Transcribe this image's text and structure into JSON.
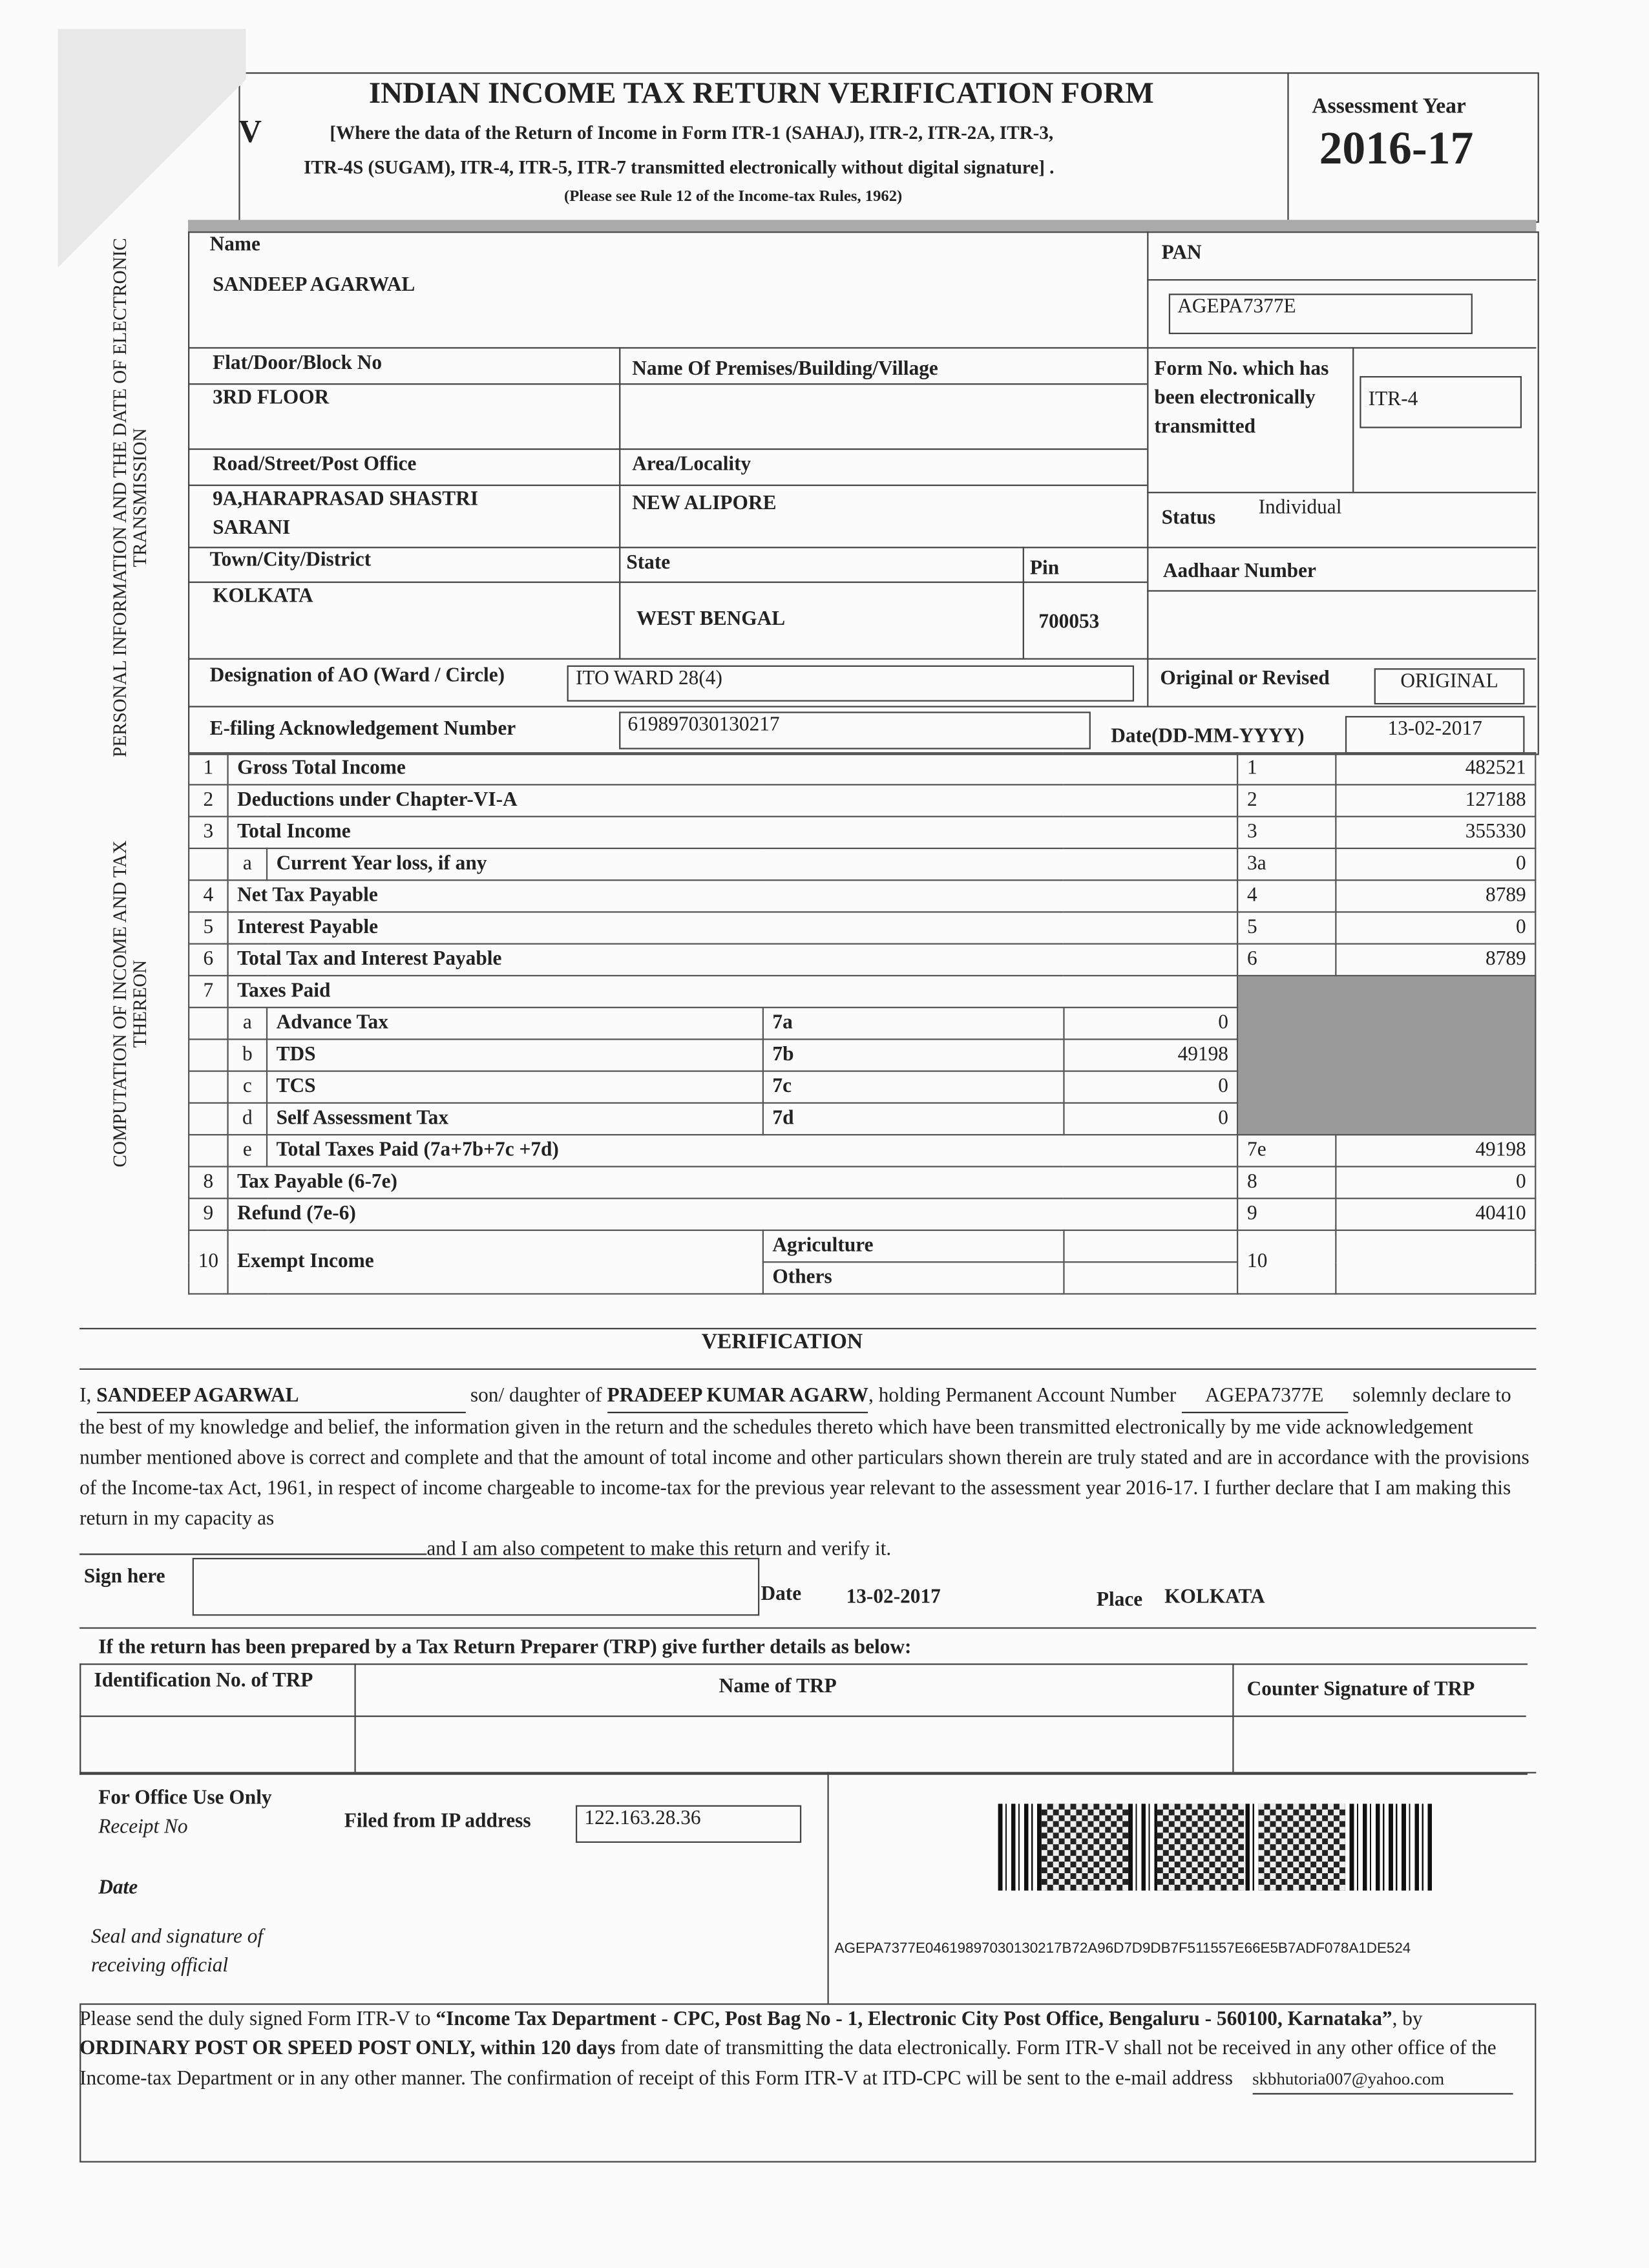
{
  "header": {
    "corner_letter": "V",
    "title": "INDIAN INCOME TAX RETURN VERIFICATION FORM",
    "subtitle_line1": "[Where the data of the Return of Income in Form ITR-1 (SAHAJ), ITR-2, ITR-2A, ITR-3,",
    "subtitle_line2": "ITR-4S (SUGAM), ITR-4, ITR-5, ITR-7  transmitted electronically without digital signature] .",
    "subtitle_line3": "(Please see Rule 12 of the Income-tax Rules, 1962)",
    "ay_label": "Assessment Year",
    "ay_value": "2016-17"
  },
  "personal": {
    "section_label": "PERSONAL INFORMATION AND THE DATE OF ELECTRONIC TRANSMISSION",
    "name_label": "Name",
    "name": "SANDEEP  AGARWAL",
    "pan_label": "PAN",
    "pan": "AGEPA7377E",
    "flat_label": "Flat/Door/Block No",
    "flat": "3RD FLOOR",
    "premises_label": "Name Of Premises/Building/Village",
    "premises": "",
    "form_no_label": "Form No. which has been electronically transmitted",
    "form_no": "ITR-4",
    "road_label": "Road/Street/Post Office",
    "road_line1": "9A,HARAPRASAD SHASTRI",
    "road_line2": "SARANI",
    "area_label": "Area/Locality",
    "area": "NEW ALIPORE",
    "status_label": "Status",
    "status": "Individual",
    "town_label": "Town/City/District",
    "town": "KOLKATA",
    "state_label": "State",
    "state": "WEST BENGAL",
    "pin_label": "Pin",
    "pin": "700053",
    "aadhaar_label": "Aadhaar Number",
    "aadhaar": "",
    "ao_label": "Designation of AO (Ward / Circle)",
    "ao": "ITO WARD 28(4)",
    "orig_label": "Original or Revised",
    "orig": "ORIGINAL",
    "ack_label": "E-filing Acknowledgement Number",
    "ack": "619897030130217",
    "date_label": "Date(DD-MM-YYYY)",
    "date": "13-02-2017"
  },
  "computation": {
    "section_label": "COMPUTATION OF INCOME AND TAX THEREON",
    "rows": [
      {
        "no": "1",
        "sub": "",
        "label": "Gross Total Income",
        "ref": "1",
        "value": "482521"
      },
      {
        "no": "2",
        "sub": "",
        "label": "Deductions under Chapter-VI-A",
        "ref": "2",
        "value": "127188"
      },
      {
        "no": "3",
        "sub": "",
        "label": "Total Income",
        "ref": "3",
        "value": "355330"
      },
      {
        "no": "",
        "sub": "a",
        "label": "Current Year loss, if any",
        "ref": "3a",
        "value": "0"
      },
      {
        "no": "4",
        "sub": "",
        "label": "Net Tax Payable",
        "ref": "4",
        "value": "8789"
      },
      {
        "no": "5",
        "sub": "",
        "label": "Interest Payable",
        "ref": "5",
        "value": "0"
      },
      {
        "no": "6",
        "sub": "",
        "label": "Total Tax and Interest Payable",
        "ref": "6",
        "value": "8789"
      }
    ],
    "taxes_paid": {
      "no": "7",
      "label": "Taxes Paid",
      "items": [
        {
          "sub": "a",
          "label": "Advance Tax",
          "ref": "7a",
          "value": "0"
        },
        {
          "sub": "b",
          "label": "TDS",
          "ref": "7b",
          "value": "49198"
        },
        {
          "sub": "c",
          "label": "TCS",
          "ref": "7c",
          "value": "0"
        },
        {
          "sub": "d",
          "label": "Self Assessment Tax",
          "ref": "7d",
          "value": "0"
        }
      ],
      "total": {
        "sub": "e",
        "label": "Total Taxes Paid (7a+7b+7c +7d)",
        "ref": "7e",
        "value": "49198"
      }
    },
    "rows2": [
      {
        "no": "8",
        "label": "Tax Payable (6-7e)",
        "ref": "8",
        "value": "0"
      },
      {
        "no": "9",
        "label": "Refund (7e-6)",
        "ref": "9",
        "value": "40410"
      }
    ],
    "exempt": {
      "no": "10",
      "label": "Exempt Income",
      "agri": "Agriculture",
      "others": "Others",
      "ref": "10",
      "value": ""
    }
  },
  "verification": {
    "title": "VERIFICATION",
    "i": "I,",
    "name": "SANDEEP  AGARWAL",
    "son_of": "son/ daughter of",
    "father": "PRADEEP KUMAR AGARW",
    "holding": ", holding Permanent Account Number",
    "pan": "AGEPA7377E",
    "body": "solemnly declare to the best of my knowledge and belief, the information given in the return and the schedules thereto which have been transmitted electronically by me vide acknowledgement number mentioned above is correct and complete and that the amount of total income and other particulars shown therein are truly stated and are in accordance with the provisions of the Income-tax Act, 1961, in respect of income  chargeable to income-tax for the previous year relevant to the assessment year 2016-17. I further declare that I am making this return in my capacity as",
    "tail": "and I am also competent to make this return and verify it.",
    "sign_label": "Sign here",
    "date_label": "Date",
    "date": "13-02-2017",
    "place_label": "Place",
    "place": "KOLKATA"
  },
  "trp": {
    "heading": "If the return has been prepared by a Tax Return Preparer (TRP) give further details as below:",
    "col1": "Identification No. of TRP",
    "col2": "Name of TRP",
    "col3": "Counter Signature of TRP"
  },
  "office": {
    "title": "For Office Use Only",
    "receipt": "Receipt No",
    "date": "Date",
    "seal": "Seal and signature of receiving official",
    "ip_label": "Filed from IP address",
    "ip": "122.163.28.36",
    "barcode_text": "AGEPA7377E04619897030130217B72A96D7D9DB7F511557E66E5B7ADF078A1DE524"
  },
  "footer": {
    "p1": "Please send the duly signed Form ITR-V to ",
    "addr": "“Income Tax Department  - CPC, Post Bag No - 1, Electronic City Post Office, Bengaluru - 560100, Karnataka”",
    "p2": ", by ",
    "post": "ORDINARY POST OR SPEED POST ONLY, within 120 days",
    "p3": " from date of transmitting the data electronically. Form ITR-V shall not be received in any other office of the Income-tax Department or in any other manner. The confirmation of receipt of this Form ITR-V at ITD-CPC will be sent to the e-mail address",
    "email": "skbhutoria007@yahoo.com"
  }
}
